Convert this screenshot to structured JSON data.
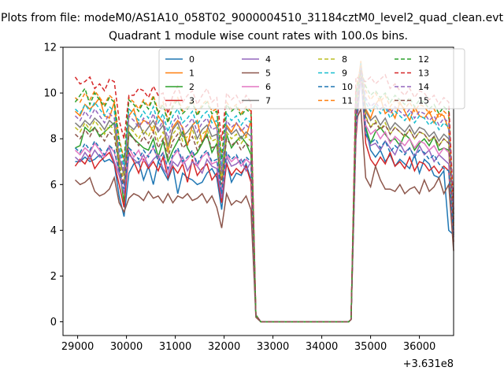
{
  "chart_data": {
    "type": "line",
    "suptitle": "Plots from file: modeM0/AS1A10_058T02_9000004510_31184cztM0_level2_quad_clean.evt",
    "title": "Quadrant 1 module wise count rates with 100.0s bins.",
    "xlabel": "",
    "ylabel": "",
    "x_offset_label": "+3.631e8",
    "xlim": [
      28700,
      36700
    ],
    "ylim": [
      -0.6,
      12
    ],
    "xticks": [
      29000,
      30000,
      31000,
      32000,
      33000,
      34000,
      35000,
      36000
    ],
    "xtick_labels": [
      "29000",
      "30000",
      "31000",
      "32000",
      "33000",
      "34000",
      "35000",
      "36000"
    ],
    "yticks": [
      0,
      2,
      4,
      6,
      8,
      10,
      12
    ],
    "ytick_labels": [
      "0",
      "2",
      "4",
      "6",
      "8",
      "10",
      "12"
    ],
    "grid": false,
    "legend": {
      "location": "upper-center",
      "columns": 4
    },
    "series_note": "Approximate per-module rates; each series = 4 segments (active, gap at 0, active).",
    "series": [
      {
        "name": "0",
        "color": "#1f77b4",
        "style": "solid",
        "start": 32553,
        "seg1": [
          7.0,
          7.0,
          7.2,
          7.0,
          7.1,
          7.3,
          7.0,
          7.1,
          6.9,
          5.5,
          4.6,
          6.5,
          6.9,
          7.0,
          6.2,
          6.8,
          6.0,
          7.0,
          6.6,
          6.2,
          6.8,
          5.6,
          6.5,
          6.3,
          6.2,
          6.0,
          6.1,
          6.5,
          6.7,
          6.3,
          4.9,
          7.0,
          6.1,
          6.5,
          6.4,
          6.9,
          6.2,
          0.3
        ],
        "seg2": [
          0.1,
          9.5,
          11.3,
          8.5,
          7.5,
          7.2,
          7.5,
          7.0,
          7.3,
          6.8,
          7.1,
          6.9,
          6.7,
          7.3,
          6.5,
          7.1,
          6.9,
          6.4,
          6.3,
          6.6,
          4.0,
          3.8
        ],
        "seg2_start": 34600
      },
      {
        "name": "1",
        "color": "#ff7f0e",
        "style": "solid",
        "seg1": [
          9.2,
          9.0,
          9.5,
          9.3,
          9.5,
          9.8,
          9.0,
          8.9,
          9.6,
          7.0,
          6.5,
          9.0,
          9.3,
          8.5,
          8.8,
          8.7,
          8.3,
          9.0,
          8.7,
          7.4,
          8.5,
          8.8,
          8.5,
          7.7,
          8.6,
          8.8,
          7.8,
          8.4,
          9.0,
          8.5,
          6.3,
          8.6,
          8.3,
          8.7,
          8.4,
          8.1,
          8.8,
          0.3
        ],
        "seg2": [
          0.1,
          9.6,
          11.4,
          9.3,
          8.9,
          9.5,
          9.8,
          9.1,
          9.3,
          8.9,
          9.6,
          9.2,
          8.8,
          9.4,
          9.0,
          8.9,
          9.2,
          8.7,
          9.1,
          9.0,
          8.4,
          4.3
        ],
        "seg2_start": 34600
      },
      {
        "name": "2",
        "color": "#2ca02c",
        "style": "solid",
        "seg1": [
          7.6,
          7.7,
          8.5,
          8.3,
          8.5,
          8.1,
          8.3,
          8.5,
          8.7,
          6.7,
          5.2,
          8.3,
          8.0,
          7.8,
          7.6,
          7.5,
          8.0,
          7.2,
          7.9,
          7.0,
          7.5,
          7.9,
          8.3,
          7.6,
          7.2,
          7.4,
          7.8,
          8.2,
          7.4,
          7.8,
          5.6,
          8.2,
          7.6,
          7.9,
          8.1,
          7.8,
          7.3,
          0.3
        ],
        "seg2": [
          0.1,
          9.2,
          11.1,
          8.5,
          7.8,
          8.3,
          8.5,
          8.2,
          7.9,
          8.0,
          7.7,
          8.2,
          8.0,
          7.5,
          7.8,
          8.0,
          7.7,
          8.1,
          7.5,
          7.6,
          7.5,
          3.8
        ],
        "seg2_start": 34600
      },
      {
        "name": "3",
        "color": "#d62728",
        "style": "solid",
        "seg1": [
          6.8,
          7.1,
          6.9,
          7.3,
          6.7,
          7.0,
          7.2,
          7.4,
          6.9,
          6.0,
          5.0,
          7.4,
          7.0,
          6.5,
          7.1,
          6.7,
          7.0,
          6.6,
          7.2,
          6.3,
          6.8,
          6.5,
          6.9,
          6.1,
          7.1,
          6.4,
          6.7,
          6.9,
          6.2,
          6.5,
          5.2,
          6.9,
          6.4,
          6.7,
          6.5,
          6.8,
          6.1,
          0.3
        ],
        "seg2": [
          0.1,
          8.0,
          10.9,
          7.8,
          7.1,
          6.8,
          7.2,
          6.9,
          7.4,
          6.8,
          7.0,
          6.7,
          7.2,
          6.6,
          7.0,
          6.9,
          6.6,
          6.8,
          6.5,
          6.8,
          6.6,
          3.5
        ],
        "seg2_start": 34600
      },
      {
        "name": "4",
        "color": "#9467bd",
        "style": "solid",
        "seg1": [
          7.2,
          7.0,
          7.4,
          7.1,
          7.5,
          7.2,
          7.3,
          7.6,
          7.0,
          6.4,
          5.6,
          7.3,
          7.1,
          6.9,
          7.3,
          6.8,
          7.1,
          7.3,
          6.7,
          6.4,
          7.0,
          6.8,
          7.2,
          6.6,
          7.0,
          6.8,
          6.5,
          7.1,
          6.8,
          6.7,
          5.4,
          7.2,
          6.8,
          6.9,
          7.1,
          6.6,
          7.0,
          0.3
        ],
        "seg2": [
          0.1,
          8.3,
          10.7,
          8.2,
          7.7,
          7.8,
          7.5,
          7.9,
          7.6,
          7.3,
          7.8,
          7.4,
          7.6,
          7.2,
          7.7,
          7.3,
          7.5,
          7.0,
          7.3,
          7.1,
          6.9,
          3.7
        ],
        "seg2_start": 34600
      },
      {
        "name": "5",
        "color": "#8c564b",
        "style": "solid",
        "seg1": [
          6.2,
          6.0,
          6.1,
          6.3,
          5.7,
          5.5,
          5.6,
          5.8,
          6.3,
          5.2,
          4.8,
          5.4,
          5.6,
          5.5,
          5.3,
          5.7,
          5.4,
          5.5,
          5.2,
          5.6,
          5.2,
          5.5,
          5.4,
          5.6,
          5.3,
          5.4,
          5.6,
          5.2,
          5.5,
          5.0,
          4.1,
          5.6,
          5.1,
          5.3,
          5.2,
          5.5,
          4.9,
          0.2
        ],
        "seg2": [
          0.1,
          8.8,
          9.3,
          6.3,
          5.9,
          6.8,
          6.2,
          5.8,
          5.8,
          5.7,
          6.0,
          5.6,
          5.8,
          5.9,
          5.6,
          6.2,
          5.7,
          5.9,
          6.3,
          5.6,
          6.0,
          3.1
        ],
        "seg2_start": 34600
      },
      {
        "name": "6",
        "color": "#e377c2",
        "style": "solid",
        "seg1": [
          7.5,
          7.3,
          7.6,
          7.4,
          7.8,
          7.5,
          7.2,
          7.7,
          7.4,
          6.5,
          6.0,
          7.6,
          7.2,
          7.5,
          7.0,
          7.3,
          7.6,
          7.1,
          7.4,
          6.6,
          7.2,
          7.5,
          6.9,
          7.1,
          7.4,
          6.8,
          7.2,
          7.4,
          6.9,
          7.0,
          5.7,
          7.3,
          7.0,
          7.2,
          6.8,
          7.1,
          6.9,
          0.3
        ],
        "seg2": [
          0.1,
          8.6,
          10.9,
          8.6,
          8.2,
          8.4,
          8.0,
          8.3,
          7.8,
          8.1,
          7.9,
          7.7,
          8.0,
          7.6,
          7.9,
          7.8,
          7.5,
          7.7,
          7.3,
          7.6,
          7.4,
          3.9
        ],
        "seg2_start": 34600
      },
      {
        "name": "7",
        "color": "#7f7f7f",
        "style": "solid",
        "seg1": [
          8.7,
          8.5,
          8.8,
          8.6,
          8.9,
          8.7,
          8.4,
          8.8,
          8.6,
          7.2,
          6.4,
          8.6,
          8.4,
          8.7,
          8.2,
          8.5,
          8.8,
          8.3,
          8.6,
          7.7,
          8.4,
          8.7,
          8.1,
          8.3,
          8.6,
          8.0,
          8.4,
          8.6,
          8.1,
          8.2,
          6.4,
          8.5,
          8.2,
          8.4,
          8.0,
          8.3,
          8.1,
          0.3
        ],
        "seg2": [
          0.1,
          9.0,
          11.2,
          9.2,
          8.8,
          9.0,
          8.6,
          8.9,
          8.4,
          8.7,
          8.5,
          8.3,
          8.6,
          8.2,
          8.5,
          8.4,
          8.1,
          8.3,
          7.9,
          8.2,
          8.0,
          4.0
        ],
        "seg2_start": 34600
      },
      {
        "name": "8",
        "color": "#bcbd22",
        "style": "dashed",
        "seg1": [
          8.5,
          8.3,
          8.7,
          8.4,
          8.8,
          8.5,
          8.2,
          8.6,
          8.4,
          7.0,
          6.2,
          8.5,
          8.3,
          8.0,
          8.4,
          8.1,
          8.6,
          7.9,
          8.3,
          7.5,
          8.2,
          8.5,
          7.9,
          8.1,
          8.4,
          7.8,
          8.2,
          8.4,
          7.9,
          8.0,
          6.2,
          8.3,
          8.0,
          8.2,
          7.8,
          8.1,
          7.9,
          0.3
        ],
        "seg2": [
          0.1,
          9.3,
          11.0,
          9.0,
          8.5,
          8.8,
          8.4,
          8.7,
          8.2,
          8.5,
          8.3,
          8.1,
          8.4,
          8.0,
          8.3,
          8.2,
          7.9,
          8.1,
          7.7,
          8.0,
          7.8,
          4.2
        ],
        "seg2_start": 34600
      },
      {
        "name": "9",
        "color": "#17becf",
        "style": "dashed",
        "seg1": [
          9.3,
          9.1,
          9.5,
          9.2,
          9.6,
          9.3,
          9.0,
          9.4,
          9.2,
          7.6,
          6.8,
          9.3,
          9.1,
          8.8,
          9.2,
          8.9,
          9.4,
          8.7,
          9.1,
          8.3,
          9.0,
          9.3,
          8.7,
          8.9,
          9.2,
          8.6,
          9.0,
          9.2,
          8.7,
          8.8,
          6.8,
          9.1,
          8.8,
          9.0,
          8.6,
          8.9,
          8.7,
          0.3
        ],
        "seg2": [
          0.1,
          9.8,
          11.3,
          9.6,
          9.2,
          9.5,
          9.1,
          9.4,
          8.9,
          9.2,
          9.0,
          8.8,
          9.1,
          8.7,
          9.0,
          8.9,
          8.6,
          8.8,
          8.4,
          8.7,
          8.5,
          4.4
        ],
        "seg2_start": 34600
      },
      {
        "name": "10",
        "color": "#1f77b4",
        "style": "dashed",
        "seg1": [
          7.6,
          7.4,
          7.8,
          7.5,
          7.9,
          7.6,
          7.3,
          7.7,
          7.5,
          6.6,
          5.8,
          7.6,
          7.4,
          7.1,
          7.5,
          7.2,
          7.7,
          7.0,
          7.4,
          6.7,
          7.3,
          7.6,
          7.0,
          7.2,
          7.5,
          6.9,
          7.3,
          7.5,
          7.0,
          7.1,
          5.6,
          7.4,
          7.1,
          7.3,
          6.9,
          7.2,
          7.0,
          0.3
        ],
        "seg2": [
          0.1,
          8.5,
          11.0,
          8.2,
          7.8,
          8.0,
          7.6,
          7.9,
          7.4,
          7.7,
          7.5,
          7.3,
          7.6,
          7.2,
          7.5,
          7.4,
          7.1,
          7.3,
          6.9,
          6.7,
          6.6,
          3.9
        ],
        "seg2_start": 34600
      },
      {
        "name": "11",
        "color": "#ff7f0e",
        "style": "dashed",
        "seg1": [
          9.8,
          9.6,
          10.0,
          9.7,
          10.1,
          9.8,
          9.5,
          9.9,
          9.7,
          8.0,
          7.1,
          9.8,
          9.6,
          9.3,
          9.7,
          9.4,
          9.9,
          9.2,
          9.6,
          8.8,
          9.5,
          9.8,
          9.2,
          9.4,
          9.7,
          9.1,
          9.5,
          9.7,
          9.2,
          9.3,
          7.2,
          9.6,
          9.3,
          9.5,
          9.1,
          9.4,
          9.2,
          0.3
        ],
        "seg2": [
          0.1,
          10.2,
          11.2,
          10.1,
          9.7,
          10.0,
          9.6,
          9.9,
          9.4,
          9.7,
          9.5,
          9.3,
          9.6,
          9.2,
          9.5,
          9.4,
          9.1,
          9.3,
          8.9,
          9.2,
          9.0,
          4.6
        ],
        "seg2_start": 34600
      },
      {
        "name": "12",
        "color": "#2ca02c",
        "style": "dashed",
        "seg1": [
          9.6,
          9.9,
          10.2,
          9.5,
          10.0,
          9.7,
          9.4,
          9.8,
          9.6,
          7.9,
          7.0,
          9.7,
          9.5,
          9.2,
          9.6,
          9.3,
          9.8,
          9.1,
          9.5,
          8.7,
          9.4,
          9.7,
          9.1,
          9.3,
          9.6,
          9.0,
          9.4,
          9.6,
          9.1,
          9.2,
          7.1,
          9.5,
          9.2,
          9.4,
          9.0,
          9.3,
          9.1,
          0.3
        ],
        "seg2": [
          0.1,
          10.0,
          11.0,
          10.3,
          9.9,
          10.1,
          9.8,
          10.0,
          9.6,
          9.9,
          9.7,
          9.5,
          9.8,
          9.4,
          9.7,
          9.6,
          9.3,
          9.5,
          9.1,
          9.4,
          9.2,
          4.7
        ],
        "seg2_start": 34600
      },
      {
        "name": "13",
        "color": "#d62728",
        "style": "dashed",
        "seg1": [
          10.7,
          10.4,
          10.5,
          10.7,
          10.2,
          10.4,
          10.1,
          10.6,
          10.5,
          8.8,
          8.0,
          9.9,
          9.9,
          10.2,
          10.1,
          9.8,
          10.3,
          9.9,
          10.0,
          9.1,
          9.9,
          10.3,
          9.6,
          9.9,
          10.1,
          9.5,
          9.9,
          10.2,
          9.6,
          9.8,
          7.9,
          10.0,
          9.7,
          9.9,
          9.5,
          9.9,
          9.6,
          0.3
        ],
        "seg2": [
          0.1,
          10.7,
          10.6,
          10.5,
          10.7,
          10.4,
          10.6,
          10.8,
          10.2,
          10.4,
          10.1,
          9.9,
          10.2,
          9.8,
          10.1,
          10.0,
          9.7,
          9.9,
          9.5,
          9.8,
          9.6,
          4.9
        ],
        "seg2_start": 34600
      },
      {
        "name": "14",
        "color": "#9467bd",
        "style": "dashed",
        "seg1": [
          9.0,
          8.8,
          9.2,
          8.9,
          9.3,
          9.0,
          8.7,
          9.1,
          8.9,
          7.4,
          6.6,
          9.0,
          8.8,
          8.5,
          8.9,
          8.6,
          9.1,
          8.4,
          8.8,
          8.0,
          8.7,
          9.0,
          8.4,
          8.6,
          8.9,
          8.3,
          8.7,
          8.9,
          8.4,
          8.5,
          6.6,
          8.8,
          8.5,
          8.7,
          8.3,
          8.6,
          8.4,
          0.3
        ],
        "seg2": [
          0.1,
          9.5,
          11.1,
          9.8,
          9.4,
          9.6,
          9.3,
          9.5,
          9.1,
          9.4,
          9.2,
          9.0,
          9.3,
          8.9,
          9.2,
          9.1,
          8.8,
          9.0,
          8.6,
          8.9,
          8.7,
          4.5
        ],
        "seg2_start": 34600
      },
      {
        "name": "15",
        "color": "#8c564b",
        "style": "dashed",
        "seg1": [
          8.2,
          8.0,
          8.4,
          8.1,
          8.5,
          8.2,
          7.9,
          8.3,
          8.1,
          6.8,
          6.0,
          8.2,
          8.0,
          7.7,
          8.1,
          7.8,
          8.3,
          7.6,
          8.0,
          7.2,
          7.9,
          8.2,
          7.6,
          7.8,
          8.1,
          7.5,
          7.9,
          8.1,
          7.6,
          7.7,
          6.0,
          8.0,
          7.7,
          7.9,
          7.5,
          7.8,
          7.6,
          0.3
        ],
        "seg2": [
          0.1,
          8.9,
          11.0,
          8.9,
          8.5,
          8.7,
          8.4,
          8.6,
          8.2,
          8.5,
          8.3,
          8.1,
          8.4,
          8.0,
          8.3,
          8.2,
          7.9,
          8.1,
          7.7,
          8.0,
          7.8,
          4.1
        ],
        "seg2_start": 34600
      }
    ]
  }
}
